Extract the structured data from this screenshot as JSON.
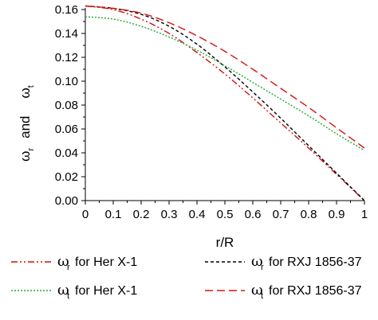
{
  "chart_data": {
    "type": "line",
    "xlabel": "r/R",
    "ylabel": {
      "symbol_1": "ω",
      "sub_1": "r",
      "word": "and",
      "symbol_2": "ω",
      "sub_2": "t"
    },
    "xlim": [
      0,
      1
    ],
    "ylim": [
      0,
      0.16
    ],
    "x_ticks": [
      "0",
      "0.1",
      "0.2",
      "0.3",
      "0.4",
      "0.5",
      "0.6",
      "0.7",
      "0.8",
      "0.9",
      "1"
    ],
    "y_ticks": [
      "0.00",
      "0.02",
      "0.04",
      "0.06",
      "0.08",
      "0.10",
      "0.12",
      "0.14",
      "0.16"
    ],
    "grid": false,
    "legend_position": "bottom",
    "series": [
      {
        "legend": {
          "symbol": "ω",
          "sub": "r",
          "text": "for Her X-1"
        },
        "color": "#cc1111",
        "dash": "dash-dot-dot",
        "x": [
          0,
          0.1,
          0.2,
          0.3,
          0.4,
          0.5,
          0.6,
          0.7,
          0.8,
          0.9,
          1.0
        ],
        "y": [
          0.163,
          0.16,
          0.152,
          0.14,
          0.124,
          0.106,
          0.086,
          0.065,
          0.044,
          0.022,
          0.0
        ]
      },
      {
        "legend": {
          "symbol": "ω",
          "sub": "r",
          "text": "for RXJ 1856-37"
        },
        "color": "#000000",
        "dash": "short-dash",
        "x": [
          0,
          0.1,
          0.2,
          0.3,
          0.4,
          0.5,
          0.6,
          0.7,
          0.8,
          0.9,
          1.0
        ],
        "y": [
          0.163,
          0.161,
          0.156,
          0.146,
          0.131,
          0.112,
          0.091,
          0.069,
          0.046,
          0.023,
          0.0
        ]
      },
      {
        "legend": {
          "symbol": "ω",
          "sub": "t",
          "text": "for Her X-1"
        },
        "color": "#22aa33",
        "dash": "dotted",
        "x": [
          0,
          0.1,
          0.2,
          0.3,
          0.4,
          0.5,
          0.6,
          0.7,
          0.8,
          0.9,
          1.0
        ],
        "y": [
          0.154,
          0.152,
          0.146,
          0.137,
          0.126,
          0.113,
          0.099,
          0.085,
          0.071,
          0.056,
          0.042
        ]
      },
      {
        "legend": {
          "symbol": "ω",
          "sub": "t",
          "text": "for RXJ 1856-37"
        },
        "color": "#dd1111",
        "dash": "long-dash",
        "x": [
          0,
          0.1,
          0.2,
          0.3,
          0.4,
          0.5,
          0.6,
          0.7,
          0.8,
          0.9,
          1.0
        ],
        "y": [
          0.163,
          0.161,
          0.157,
          0.149,
          0.138,
          0.125,
          0.11,
          0.094,
          0.078,
          0.061,
          0.044
        ]
      }
    ]
  }
}
